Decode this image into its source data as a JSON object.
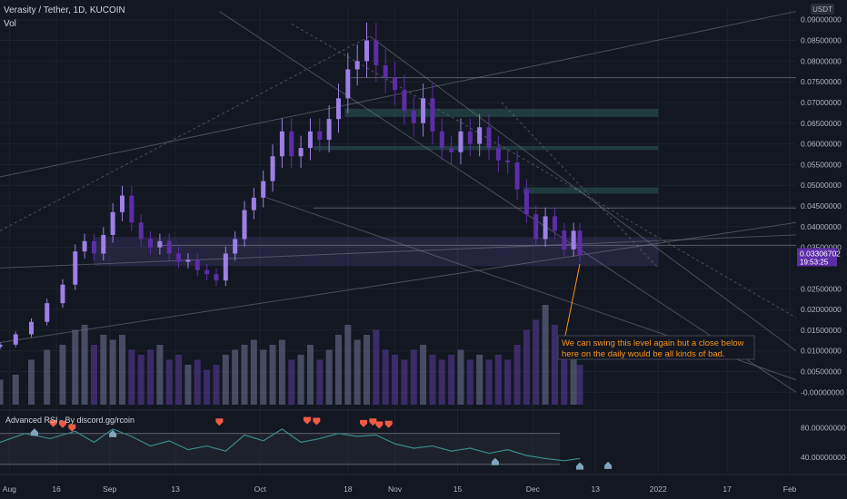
{
  "header": {
    "symbol_line": "Verasity / Tether, 1D, KUCOIN",
    "vol_label": "Vol",
    "currency": "USDT"
  },
  "colors": {
    "background": "#131722",
    "bull": "#9c80e6",
    "bear": "#5d2da8",
    "rsi_line": "#3a8a8c",
    "bear_marker": "#f05a44",
    "bull_marker": "#7fa6bc",
    "zone": "#2c5a58",
    "annotation": "#f7931a"
  },
  "chart_data": [
    {
      "type": "candlestick",
      "title": "Verasity / Tether, 1D, KUCOIN",
      "y_ticks": [
        "0.09000000",
        "0.08500000",
        "0.08000000",
        "0.07500000",
        "0.07000000",
        "0.06500000",
        "0.06000000",
        "0.05500000",
        "0.05000000",
        "0.04500000",
        "0.04000000",
        "0.03500000",
        "0.02500000",
        "0.02000000",
        "0.01500000",
        "0.01000000",
        "0.00500000",
        "-0.00000000"
      ],
      "ylim": [
        -0.003,
        0.093
      ],
      "x_ticks": [
        "Aug",
        "16",
        "Sep",
        "13",
        "Oct",
        "18",
        "Nov",
        "15",
        "Dec",
        "13",
        "2022",
        "17",
        "Feb"
      ],
      "x_tick_days": [
        -27,
        -12,
        5,
        26,
        53,
        81,
        96,
        116,
        140,
        160,
        180,
        202,
        222
      ],
      "last_price": "0.03306702",
      "countdown": "19:53:25",
      "last_value": 0.03306702,
      "close_series": [
        {
          "day": -30,
          "close": 0.0115
        },
        {
          "day": -25,
          "close": 0.014
        },
        {
          "day": -20,
          "close": 0.017
        },
        {
          "day": -15,
          "close": 0.0215
        },
        {
          "day": -10,
          "close": 0.026
        },
        {
          "day": -6,
          "close": 0.034
        },
        {
          "day": -3,
          "close": 0.0365
        },
        {
          "day": 0,
          "close": 0.0335
        },
        {
          "day": 3,
          "close": 0.038
        },
        {
          "day": 6,
          "close": 0.0435
        },
        {
          "day": 9,
          "close": 0.0475
        },
        {
          "day": 12,
          "close": 0.041
        },
        {
          "day": 15,
          "close": 0.037
        },
        {
          "day": 18,
          "close": 0.035
        },
        {
          "day": 21,
          "close": 0.0365
        },
        {
          "day": 24,
          "close": 0.0335
        },
        {
          "day": 27,
          "close": 0.0315
        },
        {
          "day": 30,
          "close": 0.032
        },
        {
          "day": 33,
          "close": 0.0295
        },
        {
          "day": 36,
          "close": 0.0285
        },
        {
          "day": 39,
          "close": 0.027
        },
        {
          "day": 42,
          "close": 0.0335
        },
        {
          "day": 45,
          "close": 0.037
        },
        {
          "day": 48,
          "close": 0.044
        },
        {
          "day": 51,
          "close": 0.047
        },
        {
          "day": 54,
          "close": 0.051
        },
        {
          "day": 57,
          "close": 0.057
        },
        {
          "day": 60,
          "close": 0.063
        },
        {
          "day": 63,
          "close": 0.057
        },
        {
          "day": 66,
          "close": 0.059
        },
        {
          "day": 69,
          "close": 0.063
        },
        {
          "day": 72,
          "close": 0.061
        },
        {
          "day": 75,
          "close": 0.066
        },
        {
          "day": 78,
          "close": 0.071
        },
        {
          "day": 81,
          "close": 0.078
        },
        {
          "day": 84,
          "close": 0.08
        },
        {
          "day": 87,
          "close": 0.085
        },
        {
          "day": 90,
          "close": 0.079
        },
        {
          "day": 93,
          "close": 0.076
        },
        {
          "day": 96,
          "close": 0.073
        },
        {
          "day": 99,
          "close": 0.068
        },
        {
          "day": 102,
          "close": 0.065
        },
        {
          "day": 105,
          "close": 0.071
        },
        {
          "day": 108,
          "close": 0.063
        },
        {
          "day": 111,
          "close": 0.059
        },
        {
          "day": 114,
          "close": 0.058
        },
        {
          "day": 117,
          "close": 0.063
        },
        {
          "day": 120,
          "close": 0.06
        },
        {
          "day": 123,
          "close": 0.064
        },
        {
          "day": 126,
          "close": 0.059
        },
        {
          "day": 129,
          "close": 0.056
        },
        {
          "day": 132,
          "close": 0.0555
        },
        {
          "day": 135,
          "close": 0.049
        },
        {
          "day": 138,
          "close": 0.043
        },
        {
          "day": 141,
          "close": 0.037
        },
        {
          "day": 144,
          "close": 0.0425
        },
        {
          "day": 147,
          "close": 0.039
        },
        {
          "day": 150,
          "close": 0.0345
        },
        {
          "day": 153,
          "close": 0.039
        },
        {
          "day": 155,
          "close": 0.0331
        }
      ],
      "volume": [
        {
          "day": -30,
          "value": 0.25
        },
        {
          "day": -25,
          "value": 0.3
        },
        {
          "day": -20,
          "value": 0.45
        },
        {
          "day": -15,
          "value": 0.55
        },
        {
          "day": -10,
          "value": 0.6
        },
        {
          "day": -6,
          "value": 0.75
        },
        {
          "day": -3,
          "value": 0.8
        },
        {
          "day": 0,
          "value": 0.6
        },
        {
          "day": 3,
          "value": 0.7
        },
        {
          "day": 6,
          "value": 0.65
        },
        {
          "day": 9,
          "value": 0.7
        },
        {
          "day": 12,
          "value": 0.55
        },
        {
          "day": 15,
          "value": 0.5
        },
        {
          "day": 18,
          "value": 0.55
        },
        {
          "day": 21,
          "value": 0.6
        },
        {
          "day": 24,
          "value": 0.45
        },
        {
          "day": 27,
          "value": 0.5
        },
        {
          "day": 30,
          "value": 0.4
        },
        {
          "day": 33,
          "value": 0.45
        },
        {
          "day": 36,
          "value": 0.35
        },
        {
          "day": 39,
          "value": 0.4
        },
        {
          "day": 42,
          "value": 0.5
        },
        {
          "day": 45,
          "value": 0.55
        },
        {
          "day": 48,
          "value": 0.6
        },
        {
          "day": 51,
          "value": 0.65
        },
        {
          "day": 54,
          "value": 0.55
        },
        {
          "day": 57,
          "value": 0.6
        },
        {
          "day": 60,
          "value": 0.65
        },
        {
          "day": 63,
          "value": 0.45
        },
        {
          "day": 66,
          "value": 0.5
        },
        {
          "day": 69,
          "value": 0.6
        },
        {
          "day": 72,
          "value": 0.45
        },
        {
          "day": 75,
          "value": 0.55
        },
        {
          "day": 78,
          "value": 0.7
        },
        {
          "day": 81,
          "value": 0.8
        },
        {
          "day": 84,
          "value": 0.65
        },
        {
          "day": 87,
          "value": 0.7
        },
        {
          "day": 90,
          "value": 0.75
        },
        {
          "day": 93,
          "value": 0.55
        },
        {
          "day": 96,
          "value": 0.5
        },
        {
          "day": 99,
          "value": 0.45
        },
        {
          "day": 102,
          "value": 0.55
        },
        {
          "day": 105,
          "value": 0.6
        },
        {
          "day": 108,
          "value": 0.5
        },
        {
          "day": 111,
          "value": 0.45
        },
        {
          "day": 114,
          "value": 0.5
        },
        {
          "day": 117,
          "value": 0.55
        },
        {
          "day": 120,
          "value": 0.45
        },
        {
          "day": 123,
          "value": 0.5
        },
        {
          "day": 126,
          "value": 0.45
        },
        {
          "day": 129,
          "value": 0.5
        },
        {
          "day": 132,
          "value": 0.45
        },
        {
          "day": 135,
          "value": 0.6
        },
        {
          "day": 138,
          "value": 0.75
        },
        {
          "day": 141,
          "value": 0.85
        },
        {
          "day": 144,
          "value": 1.0
        },
        {
          "day": 147,
          "value": 0.8
        },
        {
          "day": 150,
          "value": 0.65
        },
        {
          "day": 153,
          "value": 0.55
        },
        {
          "day": 155,
          "value": 0.4
        }
      ],
      "zones": [
        {
          "from_day": 0,
          "to_day": 180,
          "low": 0.0305,
          "high": 0.0375
        },
        {
          "from_day": 80,
          "to_day": 180,
          "low": 0.0665,
          "high": 0.0685
        },
        {
          "from_day": 70,
          "to_day": 180,
          "low": 0.0585,
          "high": 0.0595
        },
        {
          "from_day": 137,
          "to_day": 180,
          "low": 0.048,
          "high": 0.0495
        }
      ],
      "annotation": "We can swing this level again but a close below here on the daily would be all kinds of bad.",
      "annotation_target": {
        "day": 155,
        "value": 0.031
      }
    },
    {
      "type": "line",
      "title": "Advanced RSI - By discord.gg/rcoin",
      "y_ticks": [
        "80.00000000",
        "40.00000000"
      ],
      "ylim": [
        20,
        100
      ],
      "band": [
        30,
        72
      ],
      "series": [
        {
          "values": [
            {
              "day": -30,
              "v": 60
            },
            {
              "day": -22,
              "v": 72
            },
            {
              "day": -14,
              "v": 65
            },
            {
              "day": -6,
              "v": 75
            },
            {
              "day": 0,
              "v": 60
            },
            {
              "day": 6,
              "v": 78
            },
            {
              "day": 12,
              "v": 68
            },
            {
              "day": 18,
              "v": 55
            },
            {
              "day": 24,
              "v": 62
            },
            {
              "day": 30,
              "v": 50
            },
            {
              "day": 36,
              "v": 55
            },
            {
              "day": 42,
              "v": 48
            },
            {
              "day": 48,
              "v": 70
            },
            {
              "day": 54,
              "v": 62
            },
            {
              "day": 60,
              "v": 78
            },
            {
              "day": 66,
              "v": 60
            },
            {
              "day": 72,
              "v": 65
            },
            {
              "day": 78,
              "v": 72
            },
            {
              "day": 84,
              "v": 68
            },
            {
              "day": 90,
              "v": 70
            },
            {
              "day": 96,
              "v": 58
            },
            {
              "day": 102,
              "v": 52
            },
            {
              "day": 108,
              "v": 55
            },
            {
              "day": 114,
              "v": 48
            },
            {
              "day": 120,
              "v": 52
            },
            {
              "day": 126,
              "v": 45
            },
            {
              "day": 132,
              "v": 50
            },
            {
              "day": 138,
              "v": 42
            },
            {
              "day": 144,
              "v": 38
            },
            {
              "day": 150,
              "v": 35
            },
            {
              "day": 155,
              "v": 38
            }
          ]
        }
      ],
      "bear_markers": [
        {
          "day": -13,
          "v": 78
        },
        {
          "day": -10,
          "v": 77
        },
        {
          "day": -7,
          "v": 72
        },
        {
          "day": 40,
          "v": 80
        },
        {
          "day": 68,
          "v": 82
        },
        {
          "day": 71,
          "v": 81
        },
        {
          "day": 86,
          "v": 78
        },
        {
          "day": 89,
          "v": 80
        },
        {
          "day": 91,
          "v": 76
        },
        {
          "day": 94,
          "v": 77
        }
      ],
      "bull_markers": [
        {
          "day": -19,
          "v": 80
        },
        {
          "day": 6,
          "v": 78
        },
        {
          "day": 128,
          "v": 40
        },
        {
          "day": 155,
          "v": 34
        },
        {
          "day": 164,
          "v": 35
        }
      ]
    }
  ]
}
